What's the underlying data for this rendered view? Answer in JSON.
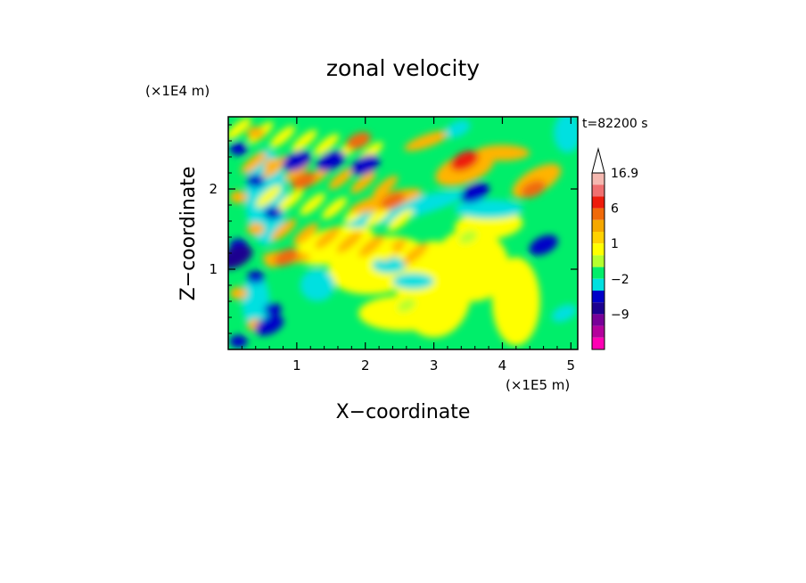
{
  "chart_data": {
    "type": "heatmap",
    "title": "zonal velocity",
    "xlabel": "X−coordinate",
    "ylabel": "Z−coordinate",
    "x_units": "(×1E5 m)",
    "y_units": "(×1E4 m)",
    "time_label": "t=82200 s",
    "xlim": [
      0,
      5.1
    ],
    "ylim": [
      0,
      2.9
    ],
    "x_ticks": [
      1,
      2,
      3,
      4,
      5
    ],
    "y_ticks": [
      1,
      2
    ],
    "x_tick_labels": [
      "1",
      "2",
      "3",
      "4",
      "5"
    ],
    "y_tick_labels": [
      "1",
      "2"
    ],
    "colorbar": {
      "labels": [
        "16.9",
        "6",
        "1",
        "−2",
        "−9"
      ],
      "label_values": [
        16.9,
        6,
        1,
        -2,
        -9
      ],
      "levels_top_to_bottom": [
        16.9,
        12,
        9,
        6,
        4,
        2,
        1,
        0,
        -1,
        -2,
        -4,
        -6,
        -9,
        -12,
        -16
      ],
      "colors_top_to_bottom": [
        "#f5b8b0",
        "#f07070",
        "#ee1c0c",
        "#f06a0a",
        "#f5a800",
        "#ffd200",
        "#ffff00",
        "#b4ff2e",
        "#00ee6a",
        "#00e0e0",
        "#0000c8",
        "#1c0090",
        "#780098",
        "#b4009c",
        "#ff00b4"
      ],
      "extend": "max"
    },
    "field_palette": {
      "strong_positive": "#f06a0a",
      "positive": "#ffb400",
      "weak_positive": "#ffff00",
      "neutral": "#00ee6a",
      "weak_negative": "#00e0e0",
      "negative": "#0000c8",
      "strong_negative": "#1c0090"
    },
    "approximate_features": [
      {
        "x": 0.1,
        "z": 1.15,
        "value": -9
      },
      {
        "x": 0.6,
        "z": 0.3,
        "value": -6
      },
      {
        "x": 1.0,
        "z": 2.35,
        "value": -6
      },
      {
        "x": 1.5,
        "z": 2.35,
        "value": -6
      },
      {
        "x": 2.0,
        "z": 2.3,
        "value": -6
      },
      {
        "x": 3.6,
        "z": 1.95,
        "value": -6
      },
      {
        "x": 3.35,
        "z": 2.75,
        "value": -4
      },
      {
        "x": 4.6,
        "z": 1.3,
        "value": -6
      },
      {
        "x": 4.9,
        "z": 0.45,
        "value": -4
      },
      {
        "x": 3.45,
        "z": 2.35,
        "value": 6
      },
      {
        "x": 2.4,
        "z": 1.85,
        "value": 4
      },
      {
        "x": 1.9,
        "z": 2.6,
        "value": 4
      },
      {
        "x": 1.1,
        "z": 2.1,
        "value": 4
      },
      {
        "x": 0.85,
        "z": 1.15,
        "value": 4
      },
      {
        "x": 4.45,
        "z": 2.0,
        "value": 4
      },
      {
        "x": 2.3,
        "z": 1.2,
        "value": 0.5
      },
      {
        "x": 3.35,
        "z": 0.9,
        "value": 0.5
      },
      {
        "x": 2.6,
        "z": 0.55,
        "value": -0.5
      },
      {
        "x": 3.5,
        "z": 1.4,
        "value": -0.5
      },
      {
        "x": 4.2,
        "z": 0.8,
        "value": 0.5
      }
    ]
  }
}
